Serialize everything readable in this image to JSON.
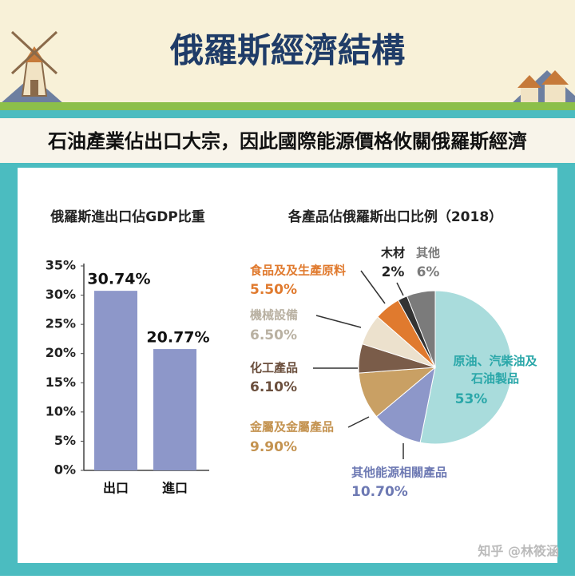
{
  "header": {
    "title": "俄羅斯經濟結構",
    "subtitle": "石油產業佔出口大宗，因此國際能源價格攸關俄羅斯經濟"
  },
  "chart_data": [
    {
      "type": "bar",
      "title": "俄羅斯進出口佔GDP比重",
      "categories": [
        "出口",
        "進口"
      ],
      "values": [
        30.74,
        20.77
      ],
      "value_labels": [
        "30.74%",
        "20.77%"
      ],
      "color": "#8d97c9",
      "ylim": [
        0,
        35
      ],
      "yticks": [
        {
          "value": 0,
          "label": "0%"
        },
        {
          "value": 5,
          "label": "5%"
        },
        {
          "value": 10,
          "label": "10%"
        },
        {
          "value": 15,
          "label": "15%"
        },
        {
          "value": 20,
          "label": "20%"
        },
        {
          "value": 25,
          "label": "25%"
        },
        {
          "value": 30,
          "label": "30%"
        },
        {
          "value": 35,
          "label": "35%"
        }
      ]
    },
    {
      "type": "pie",
      "title": "各產品佔俄羅斯出口比例（2018）",
      "categories": [
        "原油、汽柴油及石油製品",
        "其他能源相關產品",
        "金屬及金屬產品",
        "化工產品",
        "機械設備",
        "食品及及生產原料",
        "木材",
        "其他"
      ],
      "values": [
        53,
        10.7,
        9.9,
        6.1,
        6.5,
        5.5,
        2,
        6
      ],
      "value_labels": [
        "53%",
        "10.70%",
        "9.90%",
        "6.10%",
        "6.50%",
        "5.50%",
        "2%",
        "6%"
      ],
      "colors": [
        "#a9dcdc",
        "#8d97c9",
        "#c9a064",
        "#7a5c49",
        "#ece1cd",
        "#e07a2e",
        "#333333",
        "#7b7b7b"
      ]
    }
  ],
  "watermark": "知乎 @林筱涵"
}
